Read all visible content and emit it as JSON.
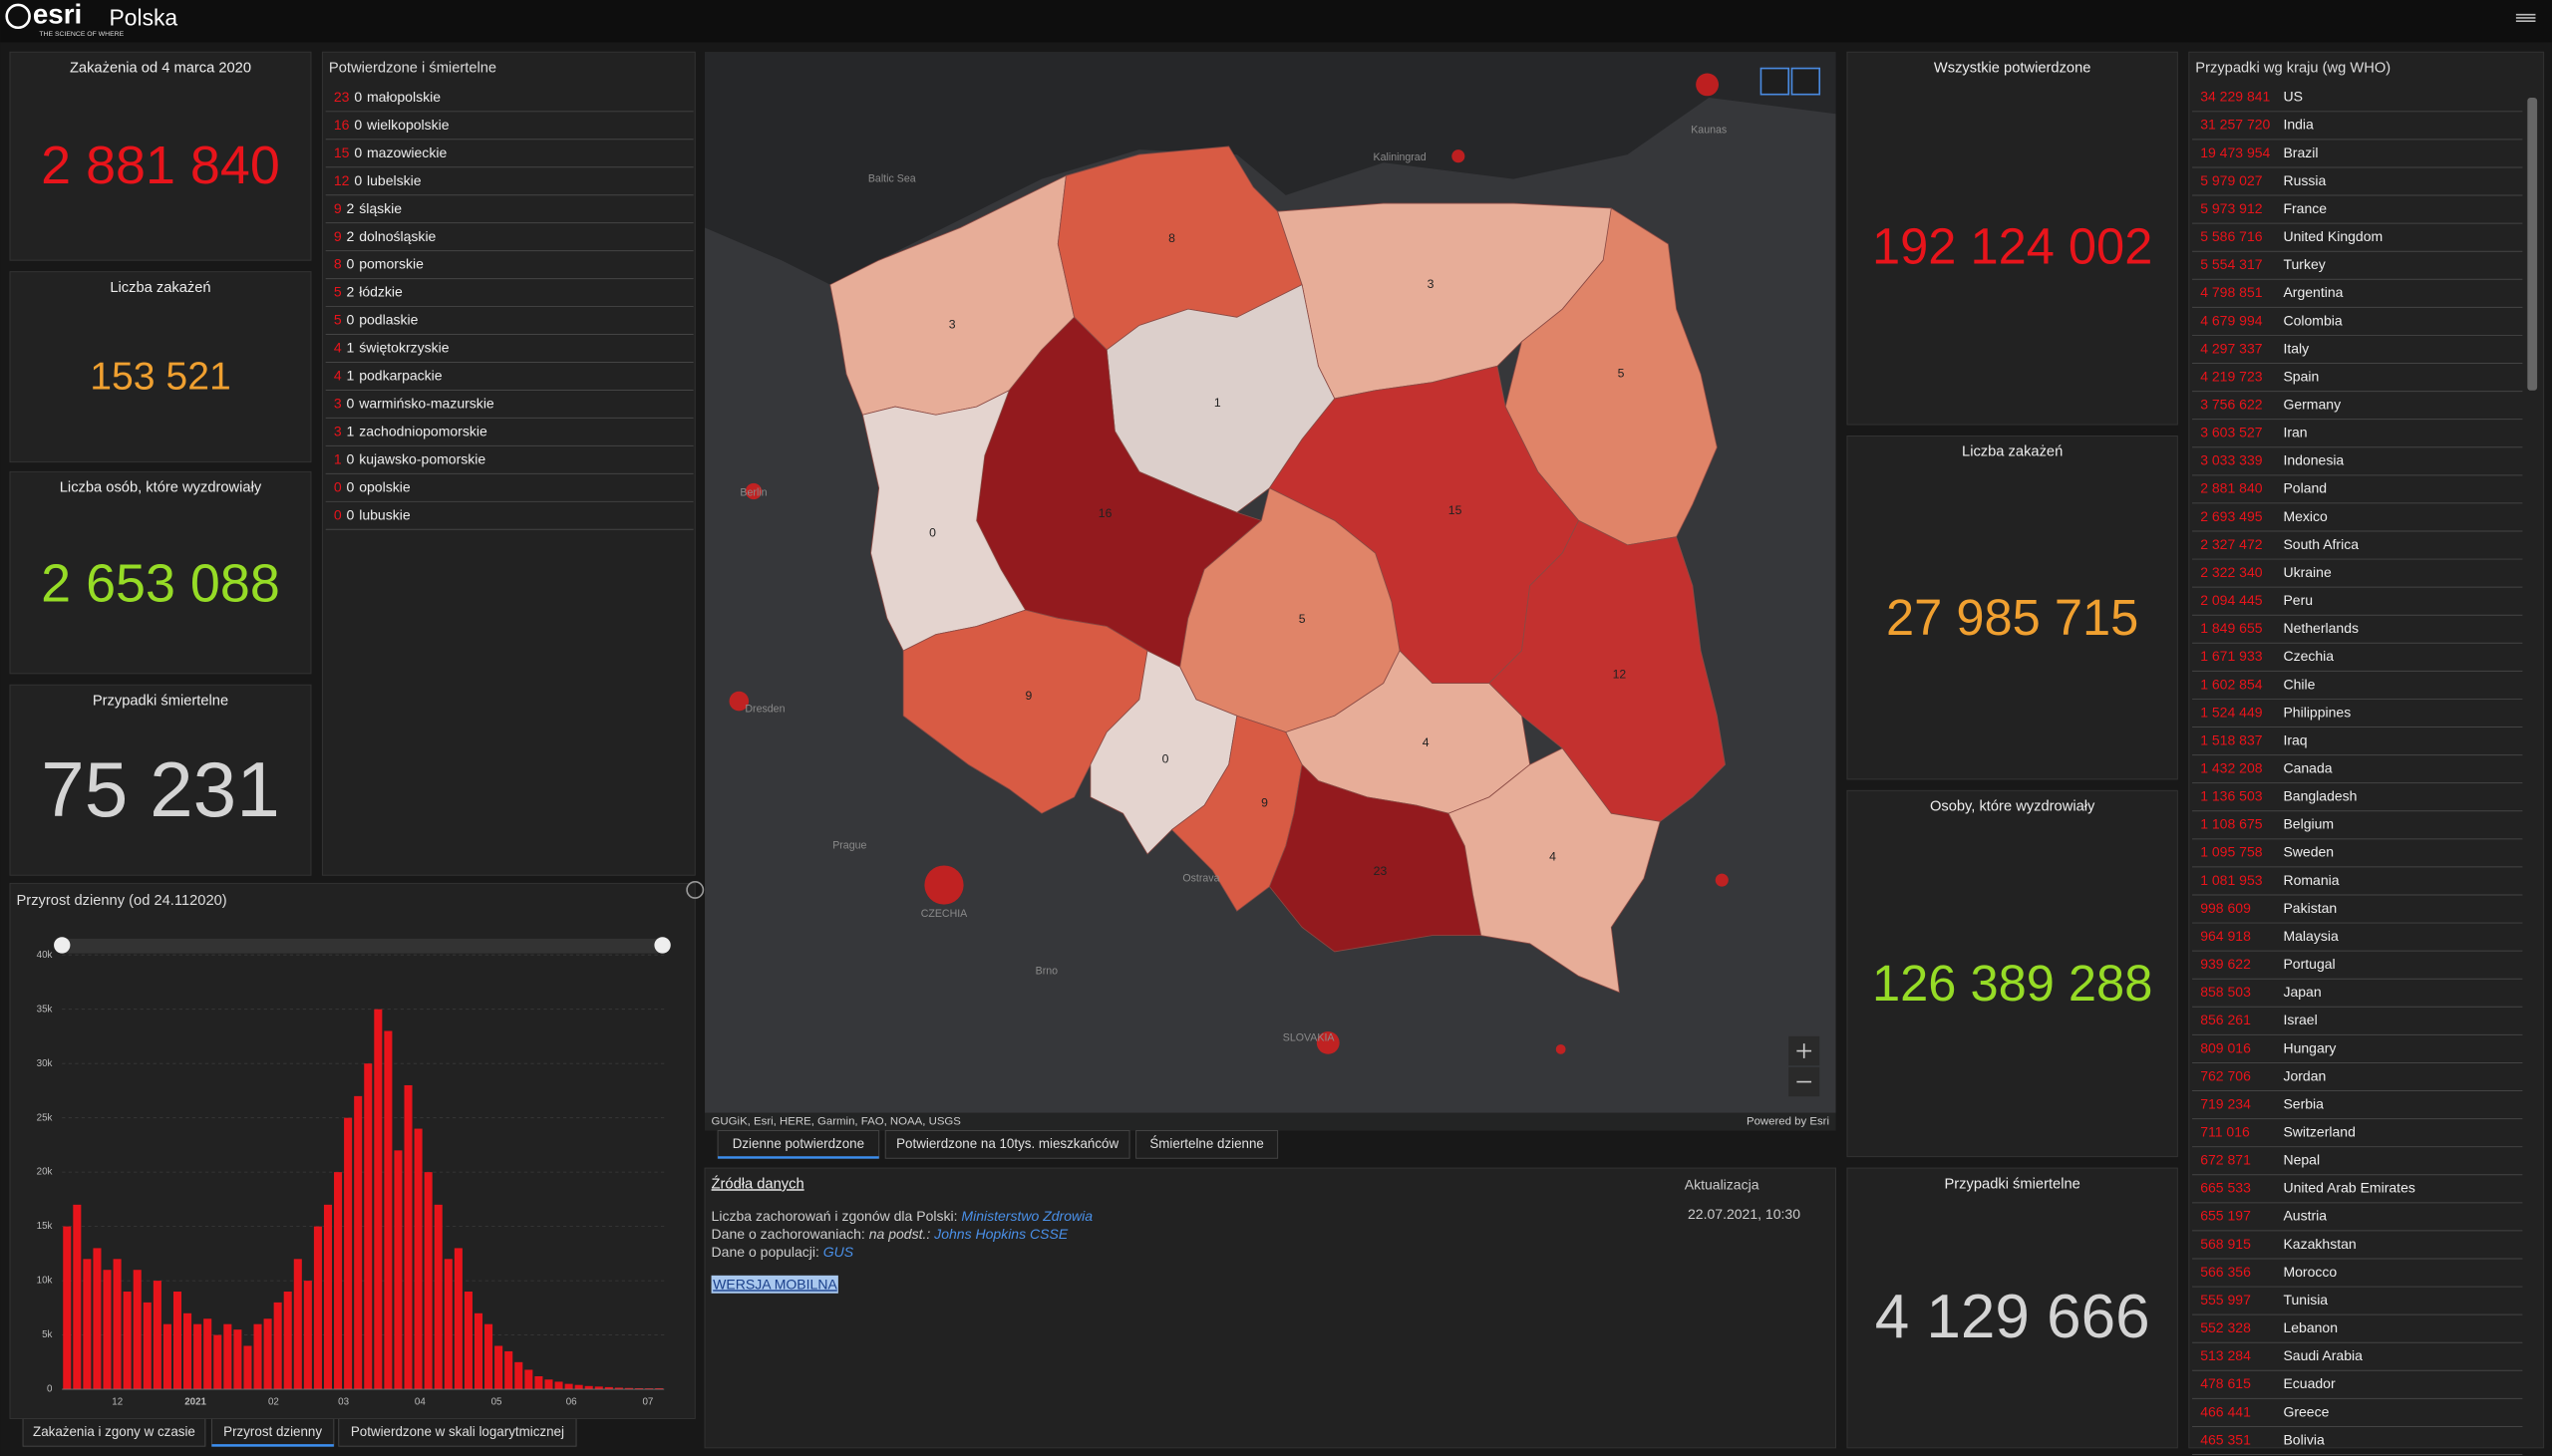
{
  "header": {
    "logo": "esri",
    "tagline": "THE SCIENCE OF WHERE",
    "title": "Polska"
  },
  "stats_left": [
    {
      "title": "Zakażenia  od 4 marca 2020",
      "value": "2 881 840"
    },
    {
      "title": "Liczba zakażeń",
      "value": "153 521"
    },
    {
      "title": "Liczba osób, które wyzdrowiały",
      "value": "2 653 088"
    },
    {
      "title": "Przypadki śmiertelne",
      "value": "75 231"
    }
  ],
  "stats_right": [
    {
      "title": "Wszystkie potwierdzone",
      "value": "192 124 002"
    },
    {
      "title": "Liczba zakażeń",
      "value": "27 985 715"
    },
    {
      "title": "Osoby, które wyzdrowiały",
      "value": "126 389 288"
    },
    {
      "title": "Przypadki śmiertelne",
      "value": "4 129 666"
    }
  ],
  "regions": {
    "title": "Potwierdzone i śmiertelne",
    "rows": [
      {
        "confirmed": 23,
        "deaths": 0,
        "name": "małopolskie"
      },
      {
        "confirmed": 16,
        "deaths": 0,
        "name": "wielkopolskie"
      },
      {
        "confirmed": 15,
        "deaths": 0,
        "name": "mazowieckie"
      },
      {
        "confirmed": 12,
        "deaths": 0,
        "name": "lubelskie"
      },
      {
        "confirmed": 9,
        "deaths": 2,
        "name": "śląskie"
      },
      {
        "confirmed": 9,
        "deaths": 2,
        "name": "dolnośląskie"
      },
      {
        "confirmed": 8,
        "deaths": 0,
        "name": "pomorskie"
      },
      {
        "confirmed": 5,
        "deaths": 2,
        "name": "łódzkie"
      },
      {
        "confirmed": 5,
        "deaths": 0,
        "name": "podlaskie"
      },
      {
        "confirmed": 4,
        "deaths": 1,
        "name": "świętokrzyskie"
      },
      {
        "confirmed": 4,
        "deaths": 1,
        "name": "podkarpackie"
      },
      {
        "confirmed": 3,
        "deaths": 0,
        "name": "warmińsko-mazurskie"
      },
      {
        "confirmed": 3,
        "deaths": 1,
        "name": "zachodniopomorskie"
      },
      {
        "confirmed": 1,
        "deaths": 0,
        "name": "kujawsko-pomorskie"
      },
      {
        "confirmed": 0,
        "deaths": 0,
        "name": "opolskie"
      },
      {
        "confirmed": 0,
        "deaths": 0,
        "name": "lubuskie"
      }
    ]
  },
  "countries": {
    "title": "Przypadki wg kraju (wg WHO)",
    "rows": [
      {
        "value": "34 229 841",
        "name": "US"
      },
      {
        "value": "31 257 720",
        "name": "India"
      },
      {
        "value": "19 473 954",
        "name": "Brazil"
      },
      {
        "value": "5 979 027",
        "name": "Russia"
      },
      {
        "value": "5 973 912",
        "name": "France"
      },
      {
        "value": "5 586 716",
        "name": "United Kingdom"
      },
      {
        "value": "5 554 317",
        "name": "Turkey"
      },
      {
        "value": "4 798 851",
        "name": "Argentina"
      },
      {
        "value": "4 679 994",
        "name": "Colombia"
      },
      {
        "value": "4 297 337",
        "name": "Italy"
      },
      {
        "value": "4 219 723",
        "name": "Spain"
      },
      {
        "value": "3 756 622",
        "name": "Germany"
      },
      {
        "value": "3 603 527",
        "name": "Iran"
      },
      {
        "value": "3 033 339",
        "name": "Indonesia"
      },
      {
        "value": "2 881 840",
        "name": "Poland"
      },
      {
        "value": "2 693 495",
        "name": "Mexico"
      },
      {
        "value": "2 327 472",
        "name": "South Africa"
      },
      {
        "value": "2 322 340",
        "name": "Ukraine"
      },
      {
        "value": "2 094 445",
        "name": "Peru"
      },
      {
        "value": "1 849 655",
        "name": "Netherlands"
      },
      {
        "value": "1 671 933",
        "name": "Czechia"
      },
      {
        "value": "1 602 854",
        "name": "Chile"
      },
      {
        "value": "1 524 449",
        "name": "Philippines"
      },
      {
        "value": "1 518 837",
        "name": "Iraq"
      },
      {
        "value": "1 432 208",
        "name": "Canada"
      },
      {
        "value": "1 136 503",
        "name": "Bangladesh"
      },
      {
        "value": "1 108 675",
        "name": "Belgium"
      },
      {
        "value": "1 095 758",
        "name": "Sweden"
      },
      {
        "value": "1 081 953",
        "name": "Romania"
      },
      {
        "value": "998 609",
        "name": "Pakistan"
      },
      {
        "value": "964 918",
        "name": "Malaysia"
      },
      {
        "value": "939 622",
        "name": "Portugal"
      },
      {
        "value": "858 503",
        "name": "Japan"
      },
      {
        "value": "856 261",
        "name": "Israel"
      },
      {
        "value": "809 016",
        "name": "Hungary"
      },
      {
        "value": "762 706",
        "name": "Jordan"
      },
      {
        "value": "719 234",
        "name": "Serbia"
      },
      {
        "value": "711 016",
        "name": "Switzerland"
      },
      {
        "value": "672 871",
        "name": "Nepal"
      },
      {
        "value": "665 533",
        "name": "United Arab Emirates"
      },
      {
        "value": "655 197",
        "name": "Austria"
      },
      {
        "value": "568 915",
        "name": "Kazakhstan"
      },
      {
        "value": "566 356",
        "name": "Morocco"
      },
      {
        "value": "555 997",
        "name": "Tunisia"
      },
      {
        "value": "552 328",
        "name": "Lebanon"
      },
      {
        "value": "513 284",
        "name": "Saudi Arabia"
      },
      {
        "value": "478 615",
        "name": "Ecuador"
      },
      {
        "value": "466 441",
        "name": "Greece"
      },
      {
        "value": "465 351",
        "name": "Bolivia"
      }
    ]
  },
  "chart_data": {
    "type": "bar",
    "title": "Przyrost dzienny (od 24.112020)",
    "color": "#e8141b",
    "values": [
      15000,
      17000,
      12000,
      13000,
      11000,
      12000,
      9000,
      11000,
      8000,
      10000,
      6000,
      9000,
      7000,
      6000,
      6500,
      5000,
      6000,
      5500,
      4000,
      6000,
      6500,
      8000,
      9000,
      12000,
      10000,
      15000,
      17000,
      20000,
      25000,
      27000,
      30000,
      35000,
      33000,
      22000,
      28000,
      24000,
      20000,
      17000,
      12000,
      13000,
      9000,
      7000,
      6000,
      4000,
      3500,
      2500,
      1800,
      1200,
      900,
      700,
      500,
      400,
      300,
      250,
      200,
      150,
      120,
      100,
      90,
      100
    ],
    "ylim": [
      0,
      40000
    ],
    "yticks": [
      0,
      {
        "value": 5000,
        "label": "5k"
      },
      {
        "value": 10000,
        "label": "10k"
      },
      {
        "value": 15000,
        "label": "15k"
      },
      {
        "value": 20000,
        "label": "20k"
      },
      {
        "value": 25000,
        "label": "25k"
      },
      {
        "value": 30000,
        "label": "30k"
      },
      {
        "value": 35000,
        "label": "35k"
      },
      {
        "value": 40000,
        "label": "40k"
      }
    ],
    "xtick_labels": [
      "12",
      "2021",
      "02",
      "03",
      "04",
      "05",
      "06",
      "07"
    ]
  },
  "chart_tabs": [
    "Zakażenia i zgony w czasie",
    "Przyrost dzienny",
    "Potwierdzone w skali logarytmicznej"
  ],
  "map": {
    "places": [
      "Baltic Sea",
      "Kaliningrad",
      "Kaunas",
      "Berlin",
      "Dresden",
      "Prague",
      "CZECHIA",
      "Brno",
      "Ostrava",
      "SLOVAKIA"
    ],
    "attribution": "GUGiK, Esri, HERE, Garmin, FAO, NOAA, USGS",
    "powered": "Powered by Esri",
    "tabs": [
      "Dzienne potwierdzone",
      "Potwierdzone na 10tys. mieszkańców",
      "Śmiertelne dzienne"
    ]
  },
  "sources": {
    "title": "Źródła danych",
    "line1": {
      "text": "Liczba zachorowań i zgonów dla Polski: ",
      "link": "Ministerstwo Zdrowia"
    },
    "line2": {
      "text": "Dane o zachorowaniach: ",
      "note": "na podst.: ",
      "link": "Johns Hopkins CSSE"
    },
    "line3": {
      "text": "Dane o populacji: ",
      "link": "GUS"
    },
    "mobile": "WERSJA MOBILNA",
    "update_label": "Aktualizacja",
    "update_value": "22.07.2021, 10:30"
  }
}
